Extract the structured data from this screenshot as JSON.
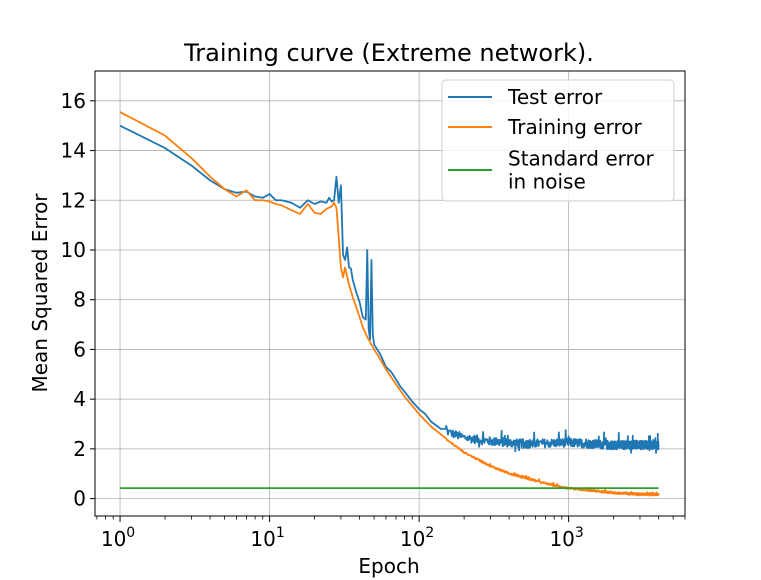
{
  "chart_data": {
    "type": "line",
    "title": "Training curve (Extreme network).",
    "xlabel": "Epoch",
    "ylabel": "Mean Squared Error",
    "xscale": "log",
    "xlim": [
      0.68,
      6000
    ],
    "ylim": [
      -0.7,
      17.2
    ],
    "grid": true,
    "legend_position": "top-right",
    "x_ticks": [
      {
        "value": 1,
        "base": "10",
        "exp": "0"
      },
      {
        "value": 10,
        "base": "10",
        "exp": "1"
      },
      {
        "value": 100,
        "base": "10",
        "exp": "2"
      },
      {
        "value": 1000,
        "base": "10",
        "exp": "3"
      }
    ],
    "y_ticks": [
      0,
      2,
      4,
      6,
      8,
      10,
      12,
      14,
      16
    ],
    "series": [
      {
        "name": "Test error",
        "color": "#1f77b4",
        "noise_from_epoch": 150,
        "noise_amplitude": 0.35,
        "points": [
          [
            1,
            15.0
          ],
          [
            2,
            14.1
          ],
          [
            3,
            13.4
          ],
          [
            4,
            12.8
          ],
          [
            5,
            12.45
          ],
          [
            6,
            12.3
          ],
          [
            7,
            12.35
          ],
          [
            8,
            12.15
          ],
          [
            9,
            12.1
          ],
          [
            10,
            12.25
          ],
          [
            11,
            12.0
          ],
          [
            12,
            12.0
          ],
          [
            14,
            11.9
          ],
          [
            16,
            11.7
          ],
          [
            18,
            12.0
          ],
          [
            20,
            11.85
          ],
          [
            22,
            11.95
          ],
          [
            24,
            11.9
          ],
          [
            25,
            12.1
          ],
          [
            26,
            11.95
          ],
          [
            27,
            12.0
          ],
          [
            28,
            12.95
          ],
          [
            29,
            11.9
          ],
          [
            30,
            12.6
          ],
          [
            31,
            9.8
          ],
          [
            32,
            9.6
          ],
          [
            33,
            10.1
          ],
          [
            34,
            9.3
          ],
          [
            35,
            9.25
          ],
          [
            36,
            8.8
          ],
          [
            38,
            8.3
          ],
          [
            40,
            7.9
          ],
          [
            42,
            7.3
          ],
          [
            44,
            7.2
          ],
          [
            45,
            10.0
          ],
          [
            46,
            6.8
          ],
          [
            47,
            6.4
          ],
          [
            48,
            9.6
          ],
          [
            49,
            6.6
          ],
          [
            50,
            6.2
          ],
          [
            55,
            5.8
          ],
          [
            60,
            5.3
          ],
          [
            65,
            5.1
          ],
          [
            70,
            4.8
          ],
          [
            75,
            4.5
          ],
          [
            80,
            4.3
          ],
          [
            90,
            3.9
          ],
          [
            100,
            3.6
          ],
          [
            110,
            3.4
          ],
          [
            120,
            3.1
          ],
          [
            140,
            2.8
          ],
          [
            160,
            2.6
          ],
          [
            200,
            2.4
          ],
          [
            300,
            2.25
          ],
          [
            500,
            2.15
          ],
          [
            1000,
            2.2
          ],
          [
            2000,
            2.1
          ],
          [
            4000,
            2.1
          ]
        ]
      },
      {
        "name": "Training error",
        "color": "#ff7f0e",
        "noise_from_epoch": 150,
        "noise_amplitude": 0.07,
        "points": [
          [
            1,
            15.55
          ],
          [
            2,
            14.6
          ],
          [
            3,
            13.7
          ],
          [
            4,
            12.95
          ],
          [
            5,
            12.45
          ],
          [
            6,
            12.15
          ],
          [
            7,
            12.4
          ],
          [
            8,
            12.0
          ],
          [
            9,
            12.0
          ],
          [
            10,
            11.95
          ],
          [
            11,
            11.85
          ],
          [
            12,
            11.8
          ],
          [
            14,
            11.6
          ],
          [
            16,
            11.45
          ],
          [
            18,
            11.85
          ],
          [
            20,
            11.5
          ],
          [
            22,
            11.45
          ],
          [
            24,
            11.65
          ],
          [
            26,
            11.75
          ],
          [
            27,
            11.9
          ],
          [
            28,
            11.7
          ],
          [
            29,
            10.5
          ],
          [
            30,
            9.3
          ],
          [
            31,
            8.9
          ],
          [
            32,
            9.3
          ],
          [
            34,
            8.6
          ],
          [
            36,
            8.1
          ],
          [
            38,
            7.7
          ],
          [
            40,
            7.3
          ],
          [
            42,
            6.9
          ],
          [
            45,
            6.5
          ],
          [
            50,
            6.0
          ],
          [
            55,
            5.6
          ],
          [
            60,
            5.2
          ],
          [
            70,
            4.6
          ],
          [
            80,
            4.1
          ],
          [
            100,
            3.4
          ],
          [
            120,
            2.9
          ],
          [
            150,
            2.4
          ],
          [
            200,
            1.85
          ],
          [
            300,
            1.3
          ],
          [
            400,
            1.0
          ],
          [
            500,
            0.85
          ],
          [
            700,
            0.6
          ],
          [
            1000,
            0.4
          ],
          [
            1500,
            0.3
          ],
          [
            2000,
            0.22
          ],
          [
            3000,
            0.17
          ],
          [
            4000,
            0.15
          ]
        ]
      },
      {
        "name": "Standard error\n in noise",
        "color": "#2ca02c",
        "points": [
          [
            1,
            0.42
          ],
          [
            4000,
            0.42
          ]
        ]
      }
    ]
  }
}
